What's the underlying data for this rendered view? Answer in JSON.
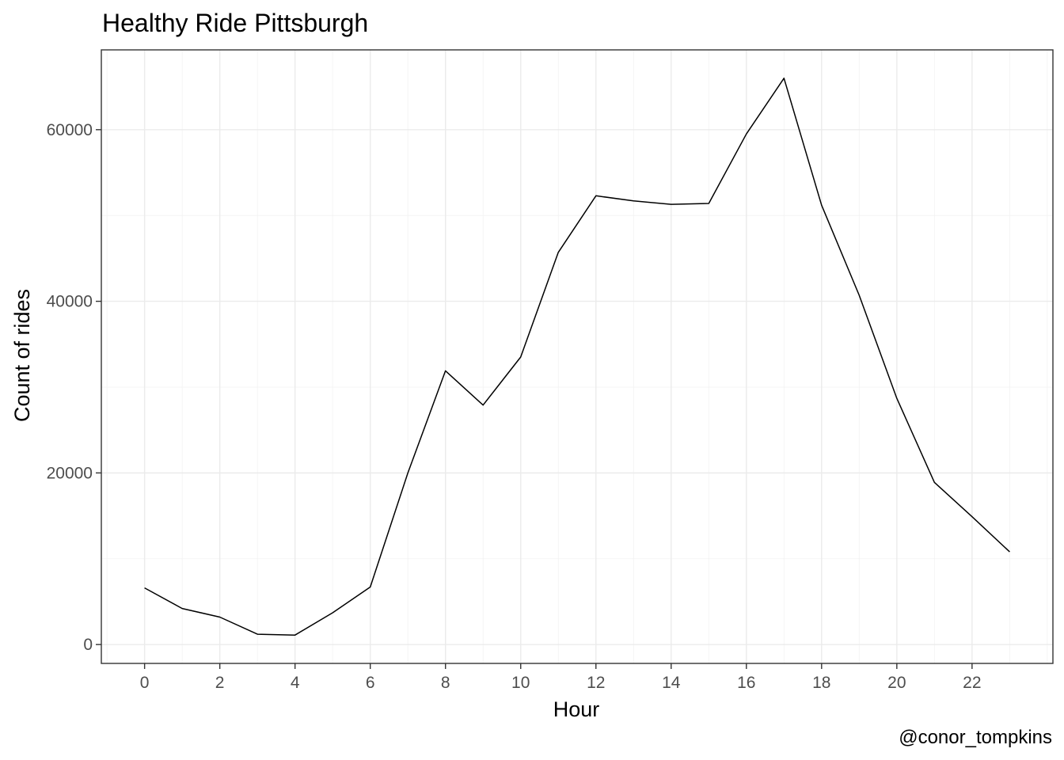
{
  "chart_data": {
    "type": "line",
    "title": "Healthy Ride Pittsburgh",
    "xlabel": "Hour",
    "ylabel": "Count of rides",
    "caption": "@conor_tompkins",
    "x": [
      0,
      1,
      2,
      3,
      4,
      5,
      6,
      7,
      8,
      9,
      10,
      11,
      12,
      13,
      14,
      15,
      16,
      17,
      18,
      19,
      20,
      21,
      22,
      23
    ],
    "series": [
      {
        "values": [
          6600,
          4200,
          3200,
          1200,
          1100,
          3700,
          6700,
          20000,
          31900,
          27900,
          33500,
          45700,
          52300,
          51700,
          51300,
          51400,
          59500,
          66000,
          51200,
          40700,
          28700,
          18900,
          14900,
          10800
        ]
      }
    ],
    "xlim": [
      -1.15,
      24.15
    ],
    "ylim": [
      -2200,
      69300
    ],
    "x_ticks": [
      0,
      2,
      4,
      6,
      8,
      10,
      12,
      14,
      16,
      18,
      20,
      22
    ],
    "x_tick_labels": [
      "0",
      "2",
      "4",
      "6",
      "8",
      "10",
      "12",
      "14",
      "16",
      "18",
      "20",
      "22"
    ],
    "y_ticks": [
      0,
      20000,
      40000,
      60000
    ],
    "y_tick_labels": [
      "0",
      "20000",
      "40000",
      "60000"
    ],
    "grid": true,
    "line_color": "#000000"
  }
}
